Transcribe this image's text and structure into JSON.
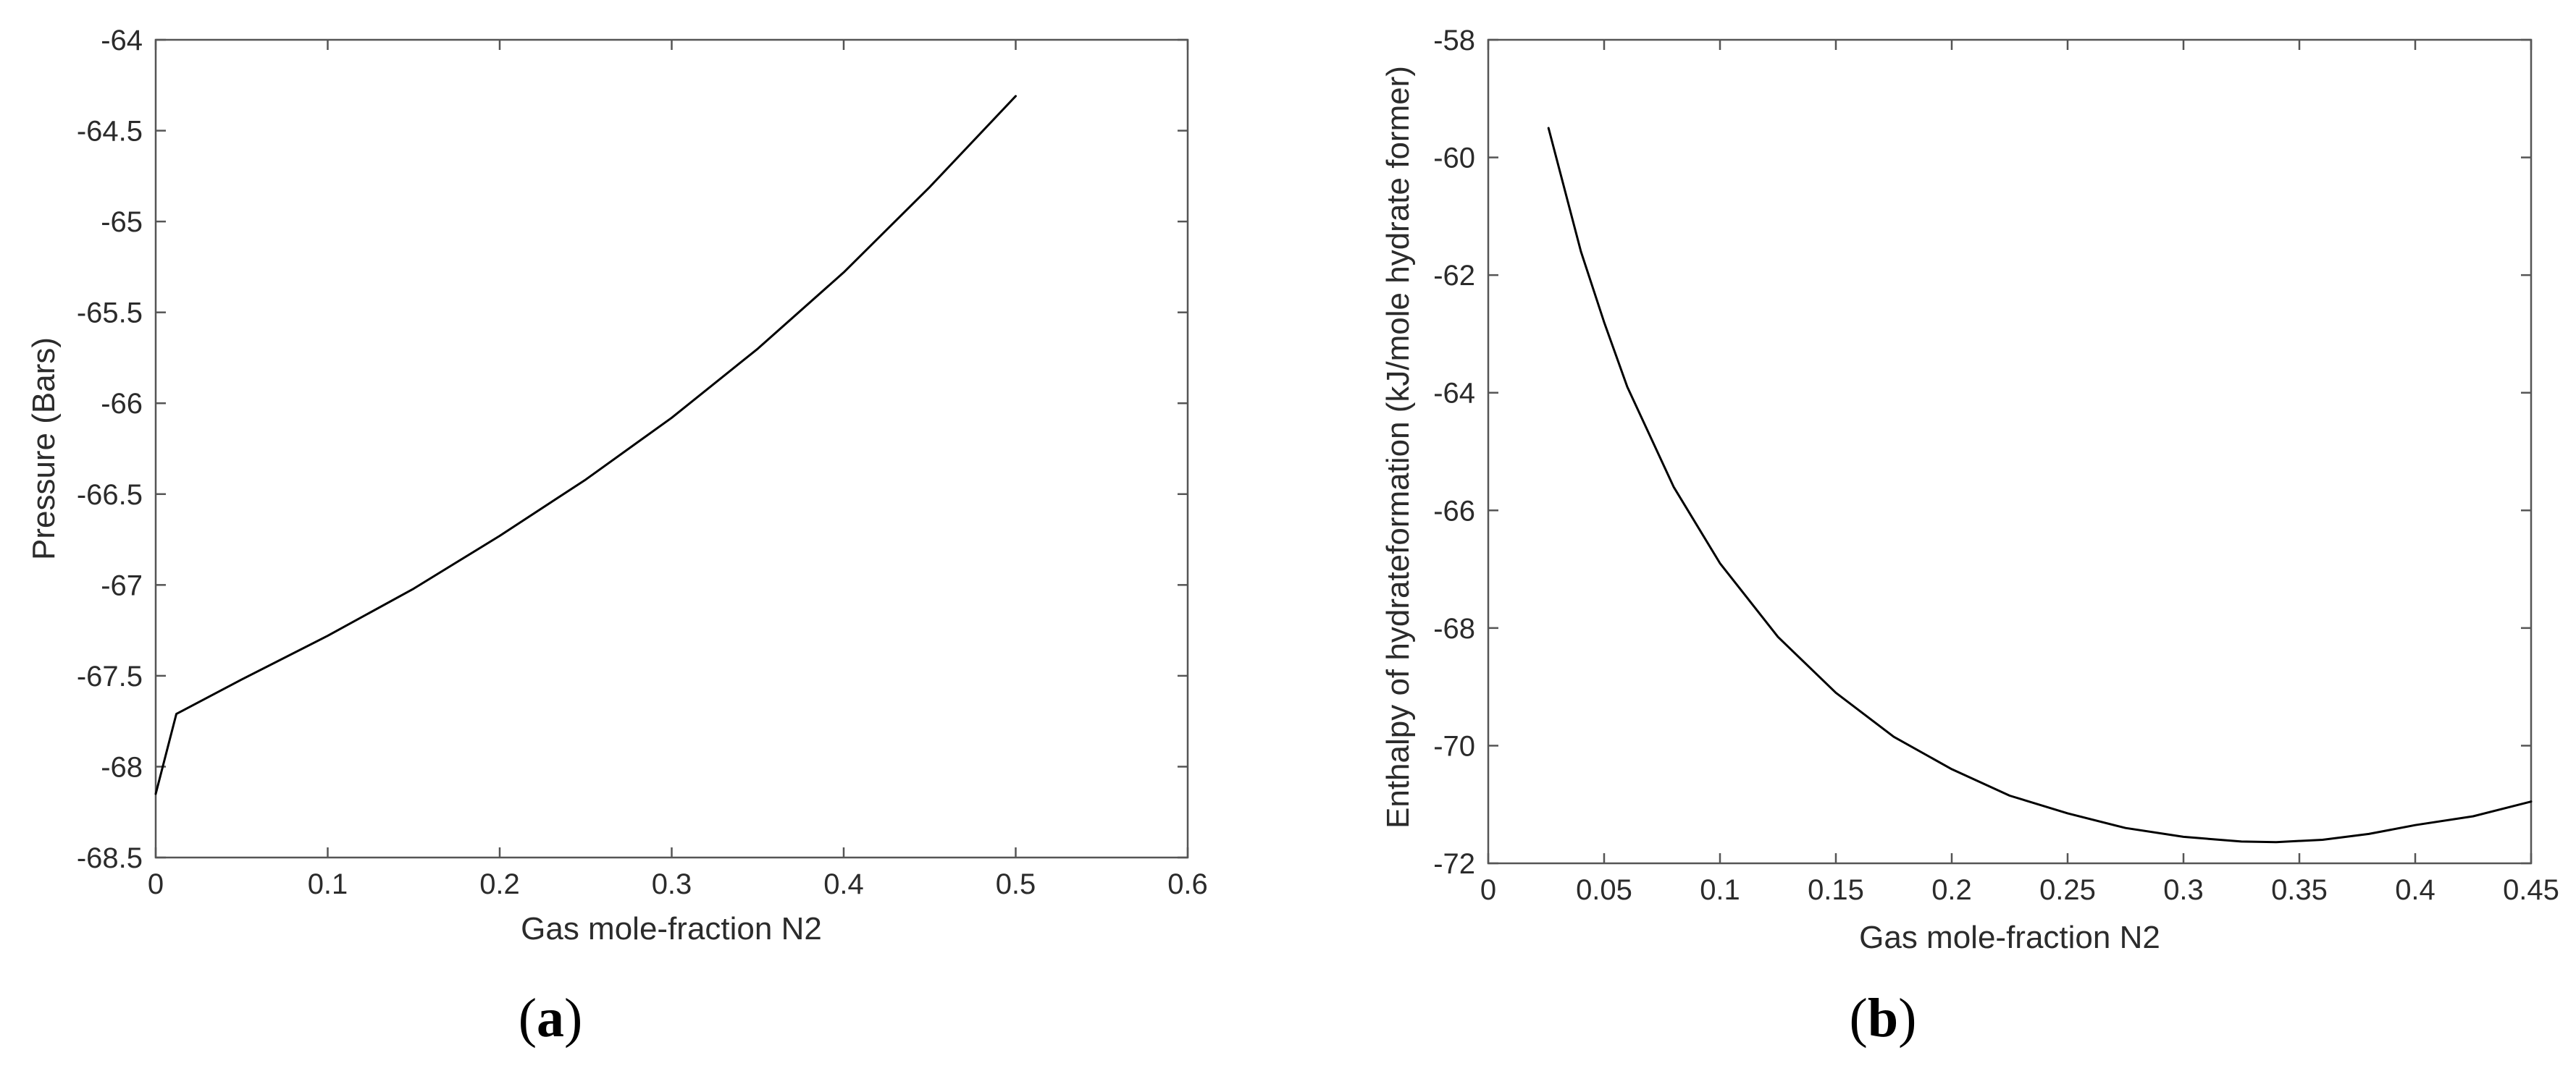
{
  "chart_data": [
    {
      "type": "line",
      "panel_label": "a",
      "xlabel": "Gas mole-fraction N2",
      "ylabel": "Pressure (Bars)",
      "xlim": [
        0,
        0.6
      ],
      "ylim": [
        -68.5,
        -64
      ],
      "x_ticks": [
        0,
        0.1,
        0.2,
        0.3,
        0.4,
        0.5,
        0.6
      ],
      "x_tick_labels": [
        "0",
        "0.1",
        "0.2",
        "0.3",
        "0.4",
        "0.5",
        "0.6"
      ],
      "y_ticks": [
        -64,
        -64.5,
        -65,
        -65.5,
        -66,
        -66.5,
        -67,
        -67.5,
        -68,
        -68.5
      ],
      "y_tick_labels": [
        "-64",
        "-64.5",
        "-65",
        "-65.5",
        "-66",
        "-66.5",
        "-67",
        "-67.5",
        "-68",
        "-68.5"
      ],
      "grid": false,
      "series": [
        {
          "color": "#000000",
          "x": [
            0.0,
            0.012,
            0.05,
            0.1,
            0.15,
            0.2,
            0.25,
            0.3,
            0.35,
            0.4,
            0.45,
            0.5
          ],
          "y": [
            -68.15,
            -67.71,
            -67.52,
            -67.28,
            -67.02,
            -66.73,
            -66.42,
            -66.08,
            -65.7,
            -65.28,
            -64.81,
            -64.31
          ]
        }
      ]
    },
    {
      "type": "line",
      "panel_label": "b",
      "xlabel": "Gas mole-fraction N2",
      "ylabel": "Enthalpy of hydrateformation (kJ/mole hydrate former)",
      "xlim": [
        0,
        0.45
      ],
      "ylim": [
        -72,
        -58
      ],
      "x_ticks": [
        0,
        0.05,
        0.1,
        0.15,
        0.2,
        0.25,
        0.3,
        0.35,
        0.4,
        0.45
      ],
      "x_tick_labels": [
        "0",
        "0.05",
        "0.1",
        "0.15",
        "0.2",
        "0.25",
        "0.3",
        "0.35",
        "0.4",
        "0.45"
      ],
      "y_ticks": [
        -58,
        -60,
        -62,
        -64,
        -66,
        -68,
        -70,
        -72
      ],
      "y_tick_labels": [
        "-58",
        "-60",
        "-62",
        "-64",
        "-66",
        "-68",
        "-70",
        "-72"
      ],
      "grid": false,
      "series": [
        {
          "color": "#000000",
          "x": [
            0.026,
            0.04,
            0.05,
            0.06,
            0.08,
            0.1,
            0.125,
            0.15,
            0.175,
            0.2,
            0.225,
            0.25,
            0.275,
            0.3,
            0.325,
            0.34,
            0.36,
            0.38,
            0.4,
            0.425,
            0.45
          ],
          "y": [
            -59.5,
            -61.6,
            -62.8,
            -63.9,
            -65.6,
            -66.9,
            -68.15,
            -69.1,
            -69.85,
            -70.4,
            -70.85,
            -71.15,
            -71.4,
            -71.55,
            -71.63,
            -71.64,
            -71.6,
            -71.5,
            -71.35,
            -71.2,
            -70.95
          ]
        }
      ]
    }
  ]
}
